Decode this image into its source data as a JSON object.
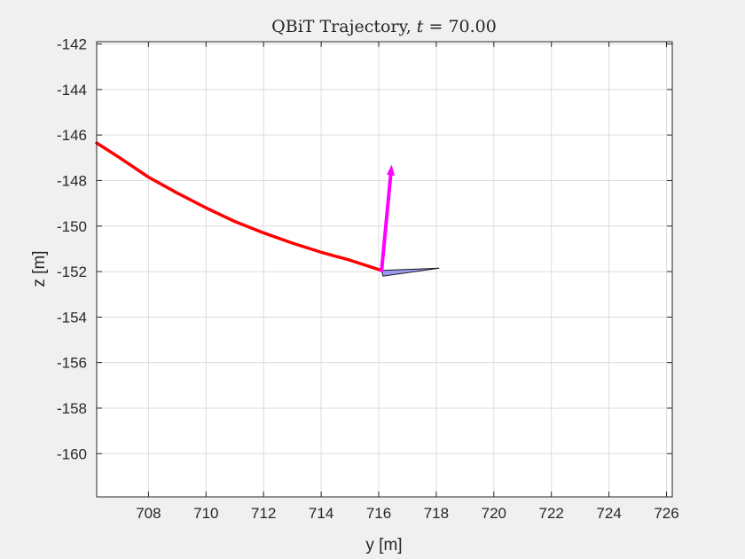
{
  "chart_data": {
    "type": "line",
    "title_prefix": "QBiT Trajectory, ",
    "title_var": "t",
    "title_eq": " = ",
    "title_value": "70.00",
    "xlabel": "y [m]",
    "ylabel": "z [m]",
    "xlim": [
      706.2,
      726.2
    ],
    "ylim": [
      -161.9,
      -141.9
    ],
    "xticks": [
      708,
      710,
      712,
      714,
      716,
      718,
      720,
      722,
      724,
      726
    ],
    "yticks": [
      -142,
      -144,
      -146,
      -148,
      -150,
      -152,
      -154,
      -156,
      -158,
      -160
    ],
    "grid": true,
    "trajectory": {
      "color": "#ff0000",
      "x": [
        706.2,
        707.0,
        708.0,
        709.0,
        710.0,
        711.0,
        712.0,
        713.0,
        714.0,
        715.0,
        716.1
      ],
      "y": [
        -146.35,
        -147.0,
        -147.85,
        -148.55,
        -149.2,
        -149.8,
        -150.3,
        -150.75,
        -151.15,
        -151.5,
        -151.95
      ]
    },
    "arrow": {
      "color": "#ff00ff",
      "from": [
        716.1,
        -151.95
      ],
      "to": [
        716.45,
        -147.3
      ]
    },
    "marker": {
      "fill": "#9999ee",
      "points": [
        [
          716.1,
          -151.95
        ],
        [
          718.1,
          -151.85
        ],
        [
          716.15,
          -152.2
        ]
      ]
    }
  }
}
